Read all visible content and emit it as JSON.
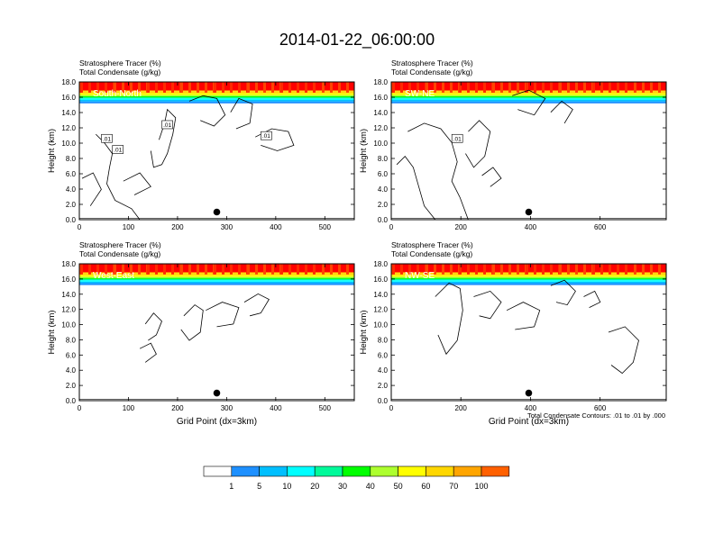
{
  "title": "2014-01-22_06:00:00",
  "panel_header": {
    "line1": "Stratosphere Tracer   (%)",
    "line2": "Total Condensate   (g/kg)"
  },
  "contour_note": "Total Condensate Contours: .01 to .01 by .000",
  "colorbar": {
    "levels": [
      "1",
      "5",
      "10",
      "20",
      "30",
      "40",
      "50",
      "60",
      "70",
      "100"
    ],
    "colors": [
      "#ffffff",
      "#1e90ff",
      "#00bfff",
      "#00ffff",
      "#00fa9a",
      "#00ff00",
      "#adff2f",
      "#ffff00",
      "#ffd700",
      "#ffa500",
      "#ff6000",
      "#ff0000"
    ]
  },
  "chart_data": [
    {
      "type": "heatmap",
      "panel": "South-North",
      "xlabel": "",
      "ylabel": "Height (km)",
      "xlim": [
        0,
        560
      ],
      "ylim": [
        0,
        18
      ],
      "xticks": [
        "0",
        "100",
        "200",
        "300",
        "400",
        "500"
      ],
      "yticks": [
        "0.0",
        "2.0",
        "4.0",
        "6.0",
        "8.0",
        "10.0",
        "12.0",
        "14.0",
        "16.0",
        "18.0"
      ],
      "contour_labels": [
        ".01",
        ".01",
        ".01",
        ".01"
      ],
      "tracer_floor_km": 15.2,
      "marker": {
        "x": 280,
        "y": 1.0
      }
    },
    {
      "type": "heatmap",
      "panel": "SW-NE",
      "xlabel": "",
      "ylabel": "Height (km)",
      "xlim": [
        0,
        790
      ],
      "ylim": [
        0,
        18
      ],
      "xticks": [
        "0",
        "200",
        "400",
        "600"
      ],
      "yticks": [
        "0.0",
        "2.0",
        "4.0",
        "6.0",
        "8.0",
        "10.0",
        "12.0",
        "14.0",
        "16.0",
        "18.0"
      ],
      "contour_labels": [
        ".01"
      ],
      "tracer_floor_km": 15.2,
      "marker": {
        "x": 395,
        "y": 1.0
      }
    },
    {
      "type": "heatmap",
      "panel": "West-East",
      "xlabel": "Grid Point (dx=3km)",
      "ylabel": "Height (km)",
      "xlim": [
        0,
        560
      ],
      "ylim": [
        0,
        18
      ],
      "xticks": [
        "0",
        "100",
        "200",
        "300",
        "400",
        "500"
      ],
      "yticks": [
        "0.0",
        "2.0",
        "4.0",
        "6.0",
        "8.0",
        "10.0",
        "12.0",
        "14.0",
        "16.0",
        "18.0"
      ],
      "contour_labels": [],
      "tracer_floor_km": 15.2,
      "marker": {
        "x": 280,
        "y": 1.0
      }
    },
    {
      "type": "heatmap",
      "panel": "NW-SE",
      "xlabel": "Grid Point (dx=3km)",
      "ylabel": "Height (km)",
      "xlim": [
        0,
        790
      ],
      "ylim": [
        0,
        18
      ],
      "xticks": [
        "0",
        "200",
        "400",
        "600"
      ],
      "yticks": [
        "0.0",
        "2.0",
        "4.0",
        "6.0",
        "8.0",
        "10.0",
        "12.0",
        "14.0",
        "16.0",
        "18.0"
      ],
      "contour_labels": [],
      "tracer_floor_km": 15.2,
      "marker": {
        "x": 395,
        "y": 1.0
      }
    }
  ]
}
